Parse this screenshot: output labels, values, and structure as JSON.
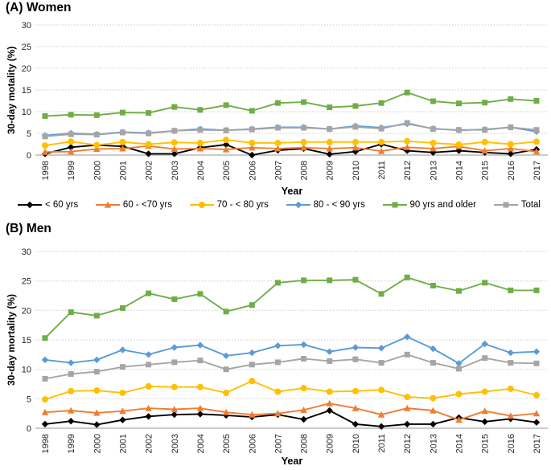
{
  "figure": {
    "legend": [
      {
        "label": "< 60 yrs",
        "color": "#000000",
        "marker": "diamond"
      },
      {
        "label": "60 - <70 yrs",
        "color": "#ED7D31",
        "marker": "triangle"
      },
      {
        "label": "70 - < 80 yrs",
        "color": "#FFC000",
        "marker": "circle"
      },
      {
        "label": "80 - < 90 yrs",
        "color": "#5B9BD5",
        "marker": "diamond"
      },
      {
        "label": "90 yrs and older",
        "color": "#70AD47",
        "marker": "square"
      },
      {
        "label": "Total",
        "color": "#A5A5A5",
        "marker": "square"
      }
    ],
    "colors": {
      "gridline": "#C9C9C9",
      "axis_line": "#ABABAB",
      "tick_text": "#262626"
    }
  },
  "chart_data": [
    {
      "type": "line",
      "title": "(A) Women",
      "xlabel": "Year",
      "ylabel": "30-day motality (%)",
      "ylim": [
        0,
        30
      ],
      "yticks": [
        0,
        5,
        10,
        15,
        20,
        25,
        30
      ],
      "grid": "horizontal-dotted",
      "legend_position": "below",
      "x": [
        "1998",
        "1999",
        "2000",
        "2001",
        "2002",
        "2003",
        "2004",
        "2005",
        "2006",
        "2007",
        "2008",
        "2009",
        "2010",
        "2011",
        "2012",
        "2013",
        "2014",
        "2015",
        "2016",
        "2017"
      ],
      "series": [
        {
          "name": "< 60 yrs",
          "color": "#000000",
          "marker": "diamond",
          "values": [
            0.3,
            1.8,
            2.3,
            2.0,
            0.3,
            0.3,
            1.7,
            2.4,
            0.0,
            1.1,
            1.5,
            0.2,
            0.8,
            2.5,
            1.0,
            0.6,
            1.0,
            0.6,
            0.3,
            1.3
          ]
        },
        {
          "name": "60 - <70 yrs",
          "color": "#ED7D31",
          "marker": "triangle",
          "values": [
            0.7,
            0.8,
            1.4,
            1.5,
            2.1,
            1.4,
            1.5,
            1.3,
            1.7,
            1.5,
            1.7,
            1.5,
            1.7,
            0.9,
            1.8,
            1.5,
            2.0,
            1.0,
            1.5,
            0.8
          ]
        },
        {
          "name": "70 - < 80 yrs",
          "color": "#FFC000",
          "marker": "circle",
          "values": [
            2.2,
            3.1,
            2.3,
            3.0,
            2.5,
            2.9,
            2.8,
            3.5,
            2.8,
            2.8,
            3.0,
            3.0,
            3.0,
            3.0,
            3.2,
            2.8,
            2.4,
            3.0,
            2.5,
            3.1
          ]
        },
        {
          "name": "80 - < 90 yrs",
          "color": "#5B9BD5",
          "marker": "diamond",
          "values": [
            4.5,
            5.0,
            4.8,
            5.3,
            5.1,
            5.6,
            6.0,
            5.7,
            6.0,
            6.4,
            6.4,
            6.0,
            6.7,
            6.3,
            7.2,
            6.1,
            5.7,
            5.9,
            6.4,
            5.4
          ]
        },
        {
          "name": "90 yrs and older",
          "color": "#70AD47",
          "marker": "square",
          "values": [
            9.0,
            9.3,
            9.2,
            9.8,
            9.7,
            11.1,
            10.4,
            11.5,
            10.2,
            12.0,
            12.2,
            11.0,
            11.3,
            12.0,
            14.4,
            12.4,
            11.9,
            12.1,
            12.9,
            12.5
          ]
        },
        {
          "name": "Total",
          "color": "#A5A5A5",
          "marker": "square",
          "values": [
            4.3,
            4.8,
            4.7,
            5.2,
            5.0,
            5.6,
            5.8,
            5.7,
            5.9,
            6.3,
            6.3,
            6.0,
            6.5,
            6.1,
            7.4,
            6.0,
            5.8,
            5.8,
            6.4,
            5.8
          ]
        }
      ]
    },
    {
      "type": "line",
      "title": "(B) Men",
      "xlabel": "Year",
      "ylabel": "30-day mortality (%)",
      "ylim": [
        0,
        30
      ],
      "yticks": [
        0,
        5,
        10,
        15,
        20,
        25,
        30
      ],
      "grid": "horizontal-dotted",
      "legend_position": "shared-above",
      "x": [
        "1998",
        "1999",
        "2000",
        "2001",
        "2002",
        "2003",
        "2004",
        "2005",
        "2006",
        "2007",
        "2008",
        "2009",
        "2010",
        "2011",
        "2012",
        "2013",
        "2014",
        "2015",
        "2016",
        "2017"
      ],
      "series": [
        {
          "name": "< 60 yrs",
          "color": "#000000",
          "marker": "diamond",
          "values": [
            0.7,
            1.2,
            0.6,
            1.4,
            2.0,
            2.3,
            2.4,
            2.2,
            1.9,
            2.3,
            1.5,
            3.0,
            0.7,
            0.3,
            0.7,
            0.7,
            1.8,
            1.1,
            1.6,
            1.0
          ]
        },
        {
          "name": "60 - <70 yrs",
          "color": "#ED7D31",
          "marker": "triangle",
          "values": [
            2.7,
            3.0,
            2.6,
            2.9,
            3.4,
            3.2,
            3.4,
            2.7,
            2.3,
            2.5,
            3.1,
            4.2,
            3.4,
            2.3,
            3.4,
            3.0,
            1.4,
            2.9,
            2.1,
            2.5
          ]
        },
        {
          "name": "70 - < 80 yrs",
          "color": "#FFC000",
          "marker": "circle",
          "values": [
            4.9,
            6.3,
            6.4,
            6.0,
            7.1,
            7.0,
            7.0,
            6.0,
            8.0,
            6.2,
            6.8,
            6.2,
            6.3,
            6.5,
            5.3,
            5.1,
            5.8,
            6.2,
            6.7,
            5.6
          ]
        },
        {
          "name": "80 - < 90 yrs",
          "color": "#5B9BD5",
          "marker": "diamond",
          "values": [
            11.6,
            11.1,
            11.6,
            13.3,
            12.5,
            13.7,
            14.1,
            12.3,
            12.8,
            14.0,
            14.2,
            13.0,
            13.7,
            13.6,
            15.5,
            13.5,
            11.0,
            14.3,
            12.8,
            13.0
          ]
        },
        {
          "name": "90 yrs and older",
          "color": "#70AD47",
          "marker": "square",
          "values": [
            15.3,
            19.7,
            19.1,
            20.4,
            22.9,
            21.9,
            22.8,
            19.8,
            20.9,
            24.7,
            25.1,
            25.1,
            25.2,
            22.8,
            25.6,
            24.2,
            23.3,
            24.7,
            23.4,
            23.4
          ]
        },
        {
          "name": "Total",
          "color": "#A5A5A5",
          "marker": "square",
          "values": [
            8.4,
            9.2,
            9.6,
            10.4,
            10.8,
            11.2,
            11.5,
            10.0,
            10.8,
            11.2,
            11.8,
            11.4,
            11.7,
            11.1,
            12.5,
            11.1,
            10.1,
            11.9,
            11.1,
            11.0
          ]
        }
      ]
    }
  ]
}
